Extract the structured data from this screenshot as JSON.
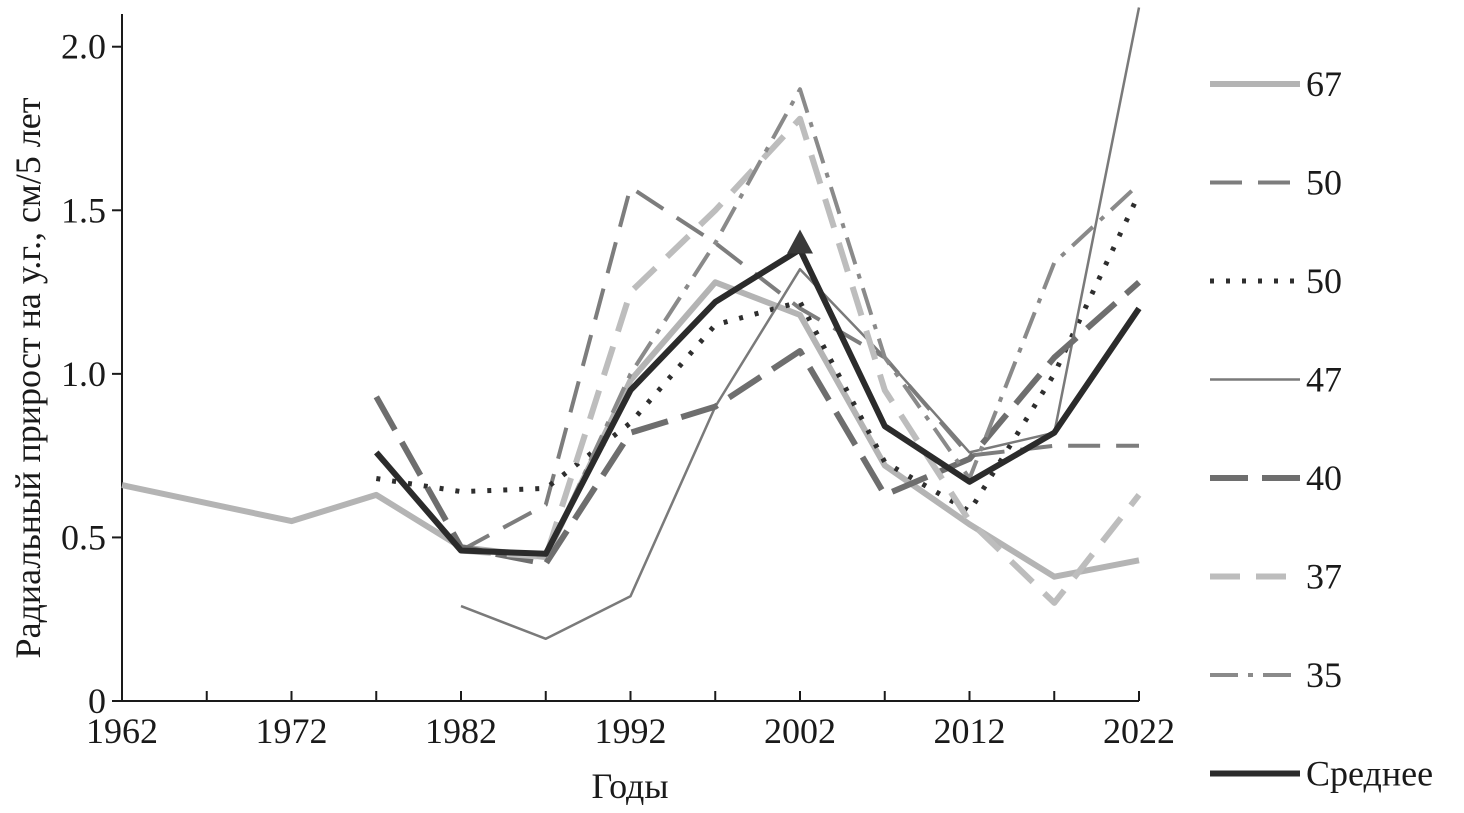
{
  "chart_data": {
    "type": "line",
    "xlabel": "Годы",
    "ylabel": "Радиальный прирост на у.г., см/5 лет",
    "xlim": [
      1962,
      2022
    ],
    "ylim": [
      0,
      2.1
    ],
    "x_ticks": [
      "1962",
      "1972",
      "1982",
      "1992",
      "2002",
      "2012",
      "2022"
    ],
    "y_ticks": [
      "0",
      "0.5",
      "1.0",
      "1.5",
      "2.0"
    ],
    "grid": false,
    "legend_position": "right",
    "series": [
      {
        "name": "67",
        "color": "#b4b4b4",
        "dash": "",
        "width": 6,
        "x": [
          1962,
          1972,
          1977,
          1982,
          1987,
          1992,
          1997,
          2002,
          2007,
          2012,
          2017,
          2022
        ],
        "y": [
          0.66,
          0.55,
          0.63,
          0.47,
          0.44,
          0.98,
          1.28,
          1.18,
          0.72,
          0.54,
          0.38,
          0.43
        ]
      },
      {
        "name": "50",
        "color": "#7d7d7d",
        "dash": "32 16",
        "width": 4,
        "x": [
          1982,
          1987,
          1992,
          1997,
          2002,
          2007,
          2012,
          2017,
          2022
        ],
        "y": [
          0.46,
          0.6,
          1.57,
          1.4,
          1.2,
          1.05,
          0.75,
          0.78,
          0.78
        ]
      },
      {
        "name": "50",
        "color": "#2e2e2e",
        "dash": "4 12",
        "width": 5,
        "x": [
          1977,
          1982,
          1987,
          1992,
          1997,
          2002,
          2007,
          2012,
          2017,
          2022
        ],
        "y": [
          0.68,
          0.64,
          0.65,
          0.85,
          1.15,
          1.22,
          0.73,
          0.58,
          1.0,
          1.55
        ]
      },
      {
        "name": "47",
        "color": "#7a7a7a",
        "dash": "",
        "width": 2.5,
        "x": [
          1982,
          1987,
          1992,
          1997,
          2002,
          2007,
          2012,
          2017,
          2022
        ],
        "y": [
          0.29,
          0.19,
          0.32,
          0.9,
          1.32,
          1.05,
          0.76,
          0.82,
          2.12
        ]
      },
      {
        "name": "40",
        "color": "#6e6e6e",
        "dash": "38 14",
        "width": 6,
        "x": [
          1977,
          1982,
          1987,
          1992,
          1997,
          2002,
          2007,
          2012,
          2017,
          2022
        ],
        "y": [
          0.93,
          0.47,
          0.42,
          0.82,
          0.9,
          1.07,
          0.63,
          0.74,
          1.05,
          1.28
        ]
      },
      {
        "name": "37",
        "color": "#bdbdbd",
        "dash": "30 16",
        "width": 6,
        "x": [
          1982,
          1987,
          1992,
          1997,
          2002,
          2007,
          2012,
          2017,
          2022
        ],
        "y": [
          0.46,
          0.44,
          1.25,
          1.5,
          1.78,
          0.95,
          0.55,
          0.3,
          0.63
        ]
      },
      {
        "name": "35",
        "color": "#8a8a8a",
        "dash": "28 10 5 10",
        "width": 4,
        "x": [
          1987,
          1992,
          1997,
          2002,
          2007,
          2012,
          2017,
          2022
        ],
        "y": [
          0.44,
          1.0,
          1.4,
          1.87,
          1.05,
          0.68,
          1.34,
          1.58
        ]
      },
      {
        "name": "Среднее",
        "color": "#2b2b2b",
        "dash": "",
        "width": 6,
        "x": [
          1977,
          1982,
          1987,
          1992,
          1997,
          2002,
          2007,
          2012,
          2017,
          2022
        ],
        "y": [
          0.76,
          0.46,
          0.45,
          0.95,
          1.22,
          1.38,
          0.84,
          0.67,
          0.82,
          1.2
        ]
      }
    ],
    "annotations": [
      {
        "type": "triangle-marker",
        "x": 2002,
        "y": 1.38,
        "color": "#3a3a3a"
      }
    ]
  }
}
